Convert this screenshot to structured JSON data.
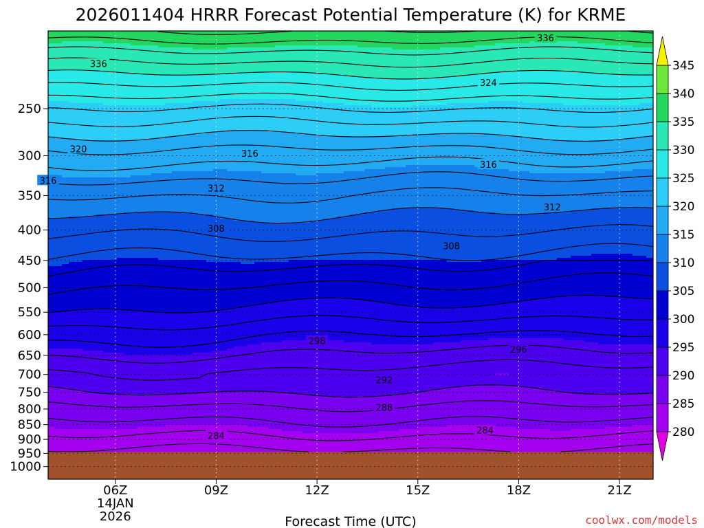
{
  "title": "2026011404 HRRR Forecast Potential Temperature (K) for KRME",
  "xlabel": "Forecast Time (UTC)",
  "credit": "coolwx.com/models",
  "chart_data": {
    "type": "heatmap",
    "title": "2026011404 HRRR Forecast Potential Temperature (K) for KRME",
    "xlabel": "Forecast Time (UTC)",
    "ylabel": "",
    "x_ticks": [
      {
        "hour": 6,
        "lines": [
          "06Z",
          "14JAN",
          "2026"
        ]
      },
      {
        "hour": 9,
        "lines": [
          "09Z"
        ]
      },
      {
        "hour": 12,
        "lines": [
          "12Z"
        ]
      },
      {
        "hour": 15,
        "lines": [
          "15Z"
        ]
      },
      {
        "hour": 18,
        "lines": [
          "18Z"
        ]
      },
      {
        "hour": 21,
        "lines": [
          "21Z"
        ]
      }
    ],
    "xlim": [
      4,
      22
    ],
    "y_ticks": [
      250,
      300,
      350,
      400,
      450,
      500,
      550,
      600,
      650,
      700,
      750,
      800,
      850,
      900,
      950,
      1000
    ],
    "ylim_hpa": [
      1050,
      185
    ],
    "y_scale": "log",
    "ground_pressure_hpa": 945,
    "ground_color": "#a0522d",
    "colorbar": {
      "levels": [
        280,
        285,
        290,
        295,
        300,
        305,
        310,
        315,
        320,
        325,
        330,
        335,
        340,
        345
      ],
      "colors": [
        "#d700e8",
        "#a400f0",
        "#7a00f0",
        "#4d00ee",
        "#1a00e8",
        "#0000d0",
        "#0b4fe0",
        "#1681ea",
        "#22aaf2",
        "#2ccdf7",
        "#28e8e8",
        "#2ae8b5",
        "#22d65e",
        "#6be83a",
        "#b7f233",
        "#ecee2a"
      ],
      "under_color": "#e300e3",
      "over_color": "#f3f000",
      "labels": [
        280,
        285,
        290,
        295,
        300,
        305,
        310,
        315,
        320,
        325,
        330,
        335,
        340,
        345
      ]
    },
    "field_profile": {
      "pressure_hpa": [
        945,
        900,
        850,
        800,
        750,
        700,
        650,
        600,
        550,
        500,
        450,
        400,
        350,
        300,
        250,
        200,
        185
      ],
      "theta_k": [
        281.5,
        283.5,
        285.5,
        287.5,
        290,
        292,
        294.5,
        297,
        300,
        302.5,
        305.5,
        308.5,
        312,
        317,
        324,
        334,
        338
      ]
    },
    "contour_interval_k": 2,
    "contour_labels": [
      {
        "value": "336",
        "hour": 5.5,
        "p": 210
      },
      {
        "value": "336",
        "hour": 18.8,
        "p": 190
      },
      {
        "value": "324",
        "hour": 17.1,
        "p": 226
      },
      {
        "value": "320",
        "hour": 4.9,
        "p": 292
      },
      {
        "value": "316",
        "hour": 10.0,
        "p": 297
      },
      {
        "value": "316",
        "hour": 4.0,
        "p": 330
      },
      {
        "value": "316",
        "hour": 17.1,
        "p": 310
      },
      {
        "value": "312",
        "hour": 9.0,
        "p": 340
      },
      {
        "value": "312",
        "hour": 19.0,
        "p": 366
      },
      {
        "value": "308",
        "hour": 9.0,
        "p": 397
      },
      {
        "value": "308",
        "hour": 16.0,
        "p": 425
      },
      {
        "value": "298",
        "hour": 12.0,
        "p": 614
      },
      {
        "value": "296",
        "hour": 18.0,
        "p": 635
      },
      {
        "value": "292",
        "hour": 14.0,
        "p": 715
      },
      {
        "value": "288",
        "hour": 14.0,
        "p": 795
      },
      {
        "value": "284",
        "hour": 17.0,
        "p": 868
      },
      {
        "value": "284",
        "hour": 9.0,
        "p": 887
      }
    ]
  }
}
